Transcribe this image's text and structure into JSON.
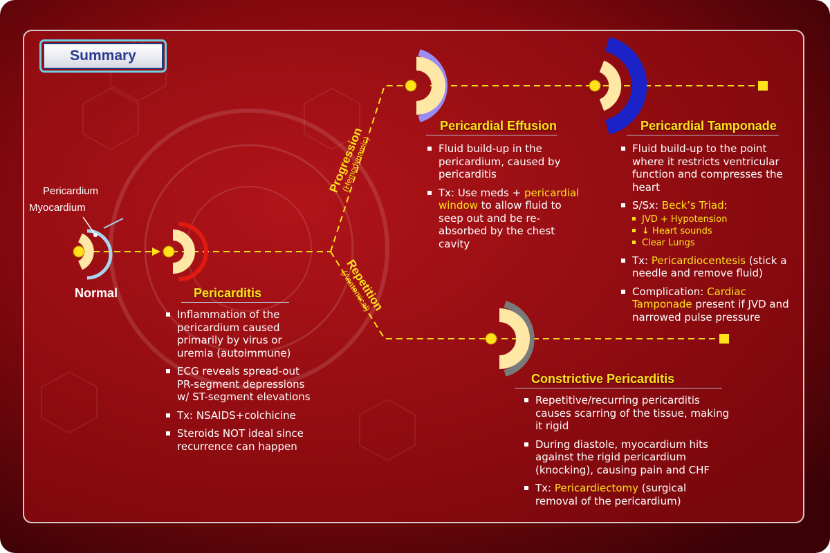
{
  "header": {
    "summary_label": "Summary"
  },
  "branches": {
    "progression": {
      "label": "Progression",
      "sublabel": "(Hemodynamic)"
    },
    "repetition": {
      "label": "Repetition",
      "sublabel": "(Anatomical)"
    }
  },
  "normal": {
    "title": "Normal",
    "pericardium_label": "Pericardium",
    "myocardium_label": "Myocardium"
  },
  "pericarditis": {
    "title": "Pericarditis",
    "bullets": [
      "Inflammation of the pericardium caused primarily by virus or uremia (autoimmune)",
      "ECG reveals spread-out PR-segment depressions w/ ST-segment elevations",
      "Tx: NSAIDS+colchicine",
      "Steroids NOT ideal since recurrence can happen"
    ]
  },
  "effusion": {
    "title": "Pericardial Effusion",
    "bullet1": "Fluid build-up in the pericardium, caused by pericarditis",
    "bullet2_prefix": "Tx: Use meds + ",
    "bullet2_highlight": "pericardial window",
    "bullet2_suffix": " to allow fluid to seep out and be re-absorbed by the chest cavity"
  },
  "tamponade": {
    "title": "Pericardial Tamponade",
    "bullet1": "Fluid build-up to the point where it restricts ventricular function and compresses the heart",
    "bullet2_prefix": "S/Sx: ",
    "bullet2_highlight": "Beck’s Triad",
    "bullet2_suffix": ":",
    "triad": [
      "JVD + Hypotension",
      "Heart sounds",
      "Clear Lungs"
    ],
    "triad_arrow": "↓",
    "bullet3_prefix": "Tx: ",
    "bullet3_highlight": "Pericardiocentesis",
    "bullet3_suffix": " (stick a needle and remove fluid)",
    "bullet4_prefix": "Complication: ",
    "bullet4_highlight": "Cardiac Tamponade",
    "bullet4_suffix": " present if JVD and narrowed pulse pressure"
  },
  "constrictive": {
    "title": "Constrictive Pericarditis",
    "bullet1": "Repetitive/recurring pericarditis causes scarring of the tissue, making it rigid",
    "bullet2": "During diastole, myocardium hits against the rigid pericardium (knocking), causing pain and CHF",
    "bullet3_prefix": "Tx: ",
    "bullet3_highlight": "Pericardiectomy",
    "bullet3_suffix": " (surgical removal of the pericardium)"
  },
  "colors": {
    "accent_yellow": "#ffe21a",
    "normal_ring": "#a9d4f0",
    "pericarditis_ring": "#e01a10",
    "effusion_ring": "#9a8cf5",
    "tamponade_ring": "#1a22c8",
    "constrictive_ring": "#7a7a7a",
    "myocardium_fill": "#ffe7a6"
  }
}
